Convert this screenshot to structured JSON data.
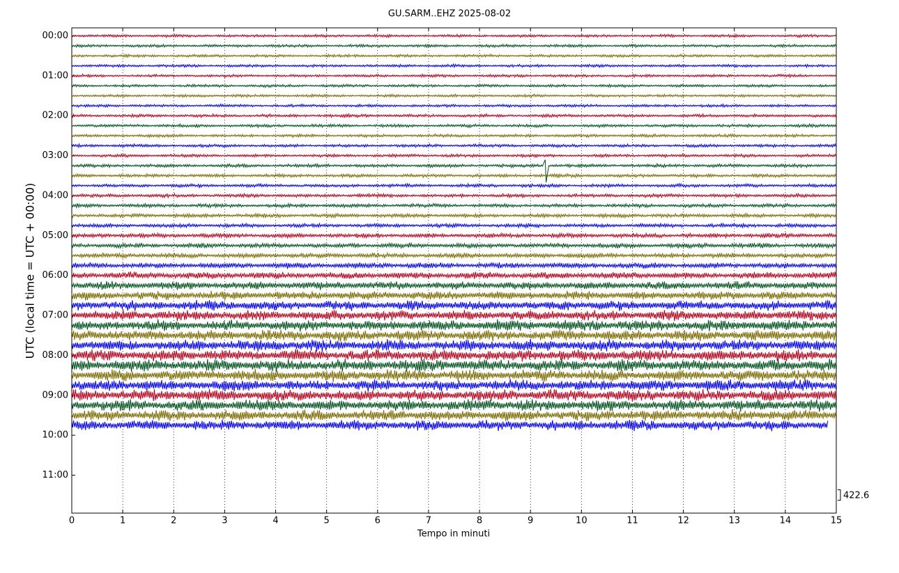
{
  "chart_data": {
    "type": "helicorder",
    "title": "GU.SARM..EHZ 2025-08-02",
    "xlabel": "Tempo in minuti",
    "ylabel": "UTC (local time = UTC + 00:00)",
    "xlim": [
      0,
      15
    ],
    "xticks": [
      0,
      1,
      2,
      3,
      4,
      5,
      6,
      7,
      8,
      9,
      10,
      11,
      12,
      13,
      14,
      15
    ],
    "ylim": [
      11.95,
      -0.2
    ],
    "yticks": [
      {
        "value": 0,
        "label": "00:00"
      },
      {
        "value": 1,
        "label": "01:00"
      },
      {
        "value": 2,
        "label": "02:00"
      },
      {
        "value": 3,
        "label": "03:00"
      },
      {
        "value": 4,
        "label": "04:00"
      },
      {
        "value": 5,
        "label": "05:00"
      },
      {
        "value": 6,
        "label": "06:00"
      },
      {
        "value": 7,
        "label": "07:00"
      },
      {
        "value": 8,
        "label": "08:00"
      },
      {
        "value": 9,
        "label": "09:00"
      },
      {
        "value": 10,
        "label": "10:00"
      },
      {
        "value": 11,
        "label": "11:00"
      }
    ],
    "grid": true,
    "scale": 422.6,
    "traces": [
      {
        "offset": 0,
        "color": "#b3001b",
        "amplitude": 50
      },
      {
        "offset": 0.25,
        "color": "#00501e",
        "amplitude": 50
      },
      {
        "offset": 0.5,
        "color": "#7a6a00",
        "amplitude": 50
      },
      {
        "offset": 0.75,
        "color": "#0000ee",
        "amplitude": 50
      },
      {
        "offset": 1,
        "color": "#b3001b",
        "amplitude": 50
      },
      {
        "offset": 1.25,
        "color": "#00501e",
        "amplitude": 50
      },
      {
        "offset": 1.5,
        "color": "#7a6a00",
        "amplitude": 50
      },
      {
        "offset": 1.75,
        "color": "#0000ee",
        "amplitude": 50
      },
      {
        "offset": 2,
        "color": "#b3001b",
        "amplitude": 55
      },
      {
        "offset": 2.25,
        "color": "#00501e",
        "amplitude": 55
      },
      {
        "offset": 2.5,
        "color": "#7a6a00",
        "amplitude": 55
      },
      {
        "offset": 2.75,
        "color": "#0000ee",
        "amplitude": 55
      },
      {
        "offset": 3,
        "color": "#b3001b",
        "amplitude": 55
      },
      {
        "offset": 3.25,
        "color": "#00501e",
        "amplitude": 60,
        "peak_x": 9.3,
        "peak": 750
      },
      {
        "offset": 3.5,
        "color": "#7a6a00",
        "amplitude": 60
      },
      {
        "offset": 3.75,
        "color": "#0000ee",
        "amplitude": 60
      },
      {
        "offset": 4,
        "color": "#b3001b",
        "amplitude": 65
      },
      {
        "offset": 4.25,
        "color": "#00501e",
        "amplitude": 65
      },
      {
        "offset": 4.5,
        "color": "#7a6a00",
        "amplitude": 70
      },
      {
        "offset": 4.75,
        "color": "#0000ee",
        "amplitude": 70
      },
      {
        "offset": 5,
        "color": "#b3001b",
        "amplitude": 80
      },
      {
        "offset": 5.25,
        "color": "#00501e",
        "amplitude": 85
      },
      {
        "offset": 5.5,
        "color": "#7a6a00",
        "amplitude": 90
      },
      {
        "offset": 5.75,
        "color": "#0000ee",
        "amplitude": 100
      },
      {
        "offset": 6,
        "color": "#b3001b",
        "amplitude": 120
      },
      {
        "offset": 6.25,
        "color": "#00501e",
        "amplitude": 140
      },
      {
        "offset": 6.5,
        "color": "#7a6a00",
        "amplitude": 150
      },
      {
        "offset": 6.75,
        "color": "#0000ee",
        "amplitude": 170
      },
      {
        "offset": 7,
        "color": "#b3001b",
        "amplitude": 180
      },
      {
        "offset": 7.25,
        "color": "#00501e",
        "amplitude": 190
      },
      {
        "offset": 7.5,
        "color": "#7a6a00",
        "amplitude": 190
      },
      {
        "offset": 7.75,
        "color": "#0000ee",
        "amplitude": 200
      },
      {
        "offset": 8,
        "color": "#b3001b",
        "amplitude": 200
      },
      {
        "offset": 8.25,
        "color": "#00501e",
        "amplitude": 210
      },
      {
        "offset": 8.5,
        "color": "#7a6a00",
        "amplitude": 200
      },
      {
        "offset": 8.75,
        "color": "#0000ee",
        "amplitude": 200
      },
      {
        "offset": 9,
        "color": "#b3001b",
        "amplitude": 200
      },
      {
        "offset": 9.25,
        "color": "#00501e",
        "amplitude": 200
      },
      {
        "offset": 9.5,
        "color": "#7a6a00",
        "amplitude": 190
      },
      {
        "offset": 9.75,
        "color": "#0000ee",
        "amplitude": 180,
        "end": 14.85
      }
    ]
  }
}
